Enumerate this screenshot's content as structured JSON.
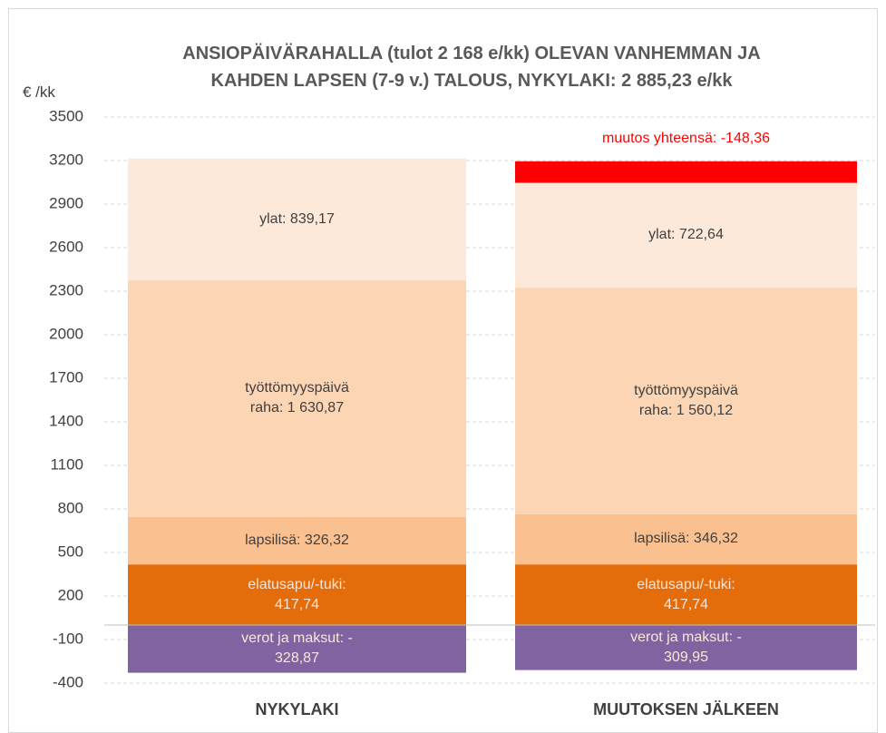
{
  "chart_data": {
    "type": "stacked_bar",
    "title": "ANSIOPÄIVÄRAHALLA (tulot 2 168 e/kk) OLEVAN VANHEMMAN JA\nKAHDEN LAPSEN (7-9 v.)  TALOUS, NYKYLAKI: 2 885,23 e/kk",
    "y_label": "€ /kk",
    "categories": [
      "NYKYLAKI",
      "MUUTOKSEN JÄLKEEN"
    ],
    "series": [
      {
        "color": "#8064a2",
        "values": [
          -328.87,
          -309.95
        ],
        "value_labels": [
          "verot ja maksut: -\n328,87",
          "verot ja maksut: -\n309,95"
        ]
      },
      {
        "color": "#e46c0a",
        "values": [
          417.74,
          417.74
        ],
        "value_labels": [
          "elatusapu/-tuki:\n417,74",
          "elatusapu/-tuki:\n417,74"
        ]
      },
      {
        "color": "#fac090",
        "values": [
          326.32,
          346.32
        ],
        "value_labels": [
          "lapsilisä: 326,32",
          "lapsilisä: 346,32"
        ]
      },
      {
        "color": "#fcd5b5",
        "values": [
          1630.87,
          1560.12
        ],
        "value_labels": [
          "työttömyyspäivä\nraha: 1 630,87",
          "työttömyyspäivä\nraha: 1 560,12"
        ]
      },
      {
        "color": "#fde9d9",
        "values": [
          839.17,
          722.64
        ],
        "value_labels": [
          "ylat: 839,17",
          "ylat: 722,64"
        ]
      },
      {
        "color": "#ff0000",
        "values": [
          null,
          148.36
        ]
      }
    ],
    "annotation": "muutos yhteensä: -148,36",
    "ylim": [
      -400,
      3500
    ],
    "yticks": [
      -400,
      -100,
      200,
      500,
      800,
      1100,
      1400,
      1700,
      2000,
      2300,
      2600,
      2900,
      3200,
      3500
    ],
    "grid": true
  }
}
